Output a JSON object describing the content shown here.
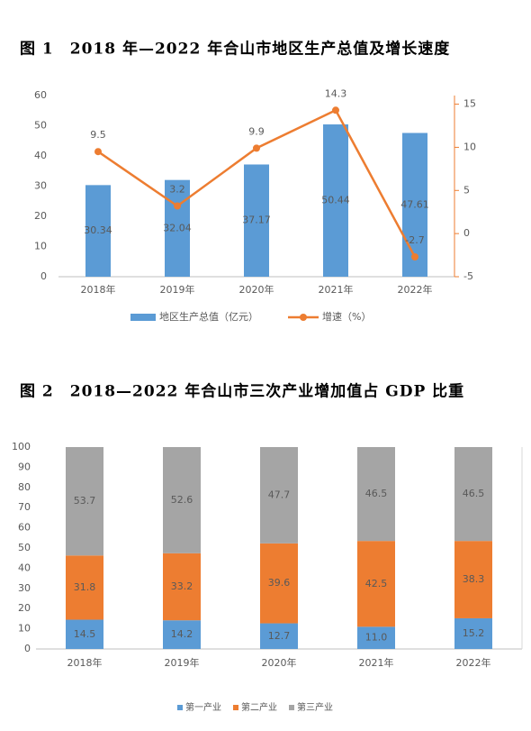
{
  "chart_data": [
    {
      "type": "combo",
      "title": "图 1　2018 年—2022 年合山市地区生产总值及增长速度",
      "categories": [
        "2018年",
        "2019年",
        "2020年",
        "2021年",
        "2022年"
      ],
      "series": [
        {
          "name": "地区生产总值（亿元）",
          "color": "#5b9bd5",
          "values": [
            30.34,
            32.04,
            37.17,
            50.44,
            47.61
          ]
        },
        {
          "name": "增速（%）",
          "color": "#ed7d31",
          "values": [
            9.5,
            3.2,
            9.9,
            14.3,
            -2.7
          ],
          "axis": "y2"
        }
      ],
      "ylim": [
        0,
        60
      ],
      "yticks": [
        0,
        10,
        20,
        30,
        40,
        50,
        60
      ],
      "y2lim": [
        -5,
        16
      ],
      "y2ticks": [
        -5,
        0,
        5,
        10,
        15
      ],
      "legend": "bottom"
    },
    {
      "type": "stacked",
      "title": "图 2　2018—2022 年合山市三次产业增加值占 GDP 比重",
      "categories": [
        "2018年",
        "2019年",
        "2020年",
        "2021年",
        "2022年"
      ],
      "series": [
        {
          "name": "第一产业",
          "color": "#5b9bd5",
          "values": [
            14.5,
            14.2,
            12.7,
            11.0,
            15.2
          ],
          "value_labels": [
            "14.5",
            "14.2",
            "12.7",
            "11.0",
            "15.2"
          ]
        },
        {
          "name": "第二产业",
          "color": "#ed7d31",
          "values": [
            31.8,
            33.2,
            39.6,
            42.5,
            38.3
          ]
        },
        {
          "name": "第三产业",
          "color": "#a5a5a5",
          "values": [
            53.7,
            52.6,
            47.7,
            46.5,
            46.5
          ]
        }
      ],
      "ylim": [
        0,
        100
      ],
      "yticks": [
        0,
        10,
        20,
        30,
        40,
        50,
        60,
        70,
        80,
        90,
        100
      ],
      "legend": "bottom"
    }
  ]
}
